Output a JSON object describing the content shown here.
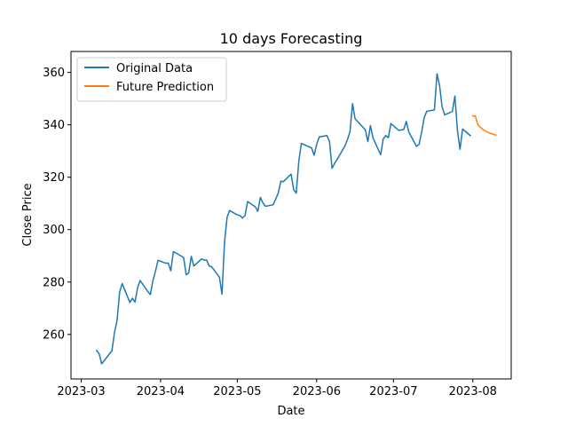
{
  "chart_data": {
    "type": "line",
    "title": "10 days Forecasting",
    "xlabel": "Date",
    "ylabel": "Close Price",
    "x_axis": {
      "type": "date",
      "range": [
        "2023-02-25",
        "2023-08-16"
      ],
      "ticks": [
        "2023-03-01",
        "2023-04-01",
        "2023-05-01",
        "2023-06-01",
        "2023-07-01",
        "2023-08-01"
      ],
      "tick_labels": [
        "2023-03",
        "2023-04",
        "2023-05",
        "2023-06",
        "2023-07",
        "2023-08"
      ]
    },
    "y_axis": {
      "range": [
        243,
        368
      ],
      "ticks": [
        260,
        280,
        300,
        320,
        340,
        360
      ],
      "tick_labels": [
        "260",
        "280",
        "300",
        "320",
        "340",
        "360"
      ]
    },
    "grid": false,
    "legend": {
      "placement": "top-left"
    },
    "series": [
      {
        "name": "Original Data",
        "color": "#1f77b4",
        "points": [
          [
            "2023-03-07",
            253.9
          ],
          [
            "2023-03-08",
            252.6
          ],
          [
            "2023-03-09",
            248.8
          ],
          [
            "2023-03-13",
            253.8
          ],
          [
            "2023-03-14",
            260.8
          ],
          [
            "2023-03-15",
            265.4
          ],
          [
            "2023-03-16",
            276.2
          ],
          [
            "2023-03-17",
            279.4
          ],
          [
            "2023-03-20",
            272.2
          ],
          [
            "2023-03-21",
            273.8
          ],
          [
            "2023-03-22",
            272.3
          ],
          [
            "2023-03-23",
            277.7
          ],
          [
            "2023-03-24",
            280.6
          ],
          [
            "2023-03-27",
            276.4
          ],
          [
            "2023-03-28",
            275.2
          ],
          [
            "2023-03-29",
            280.5
          ],
          [
            "2023-03-30",
            284.1
          ],
          [
            "2023-03-31",
            288.3
          ],
          [
            "2023-04-03",
            287.2
          ],
          [
            "2023-04-04",
            287.2
          ],
          [
            "2023-04-05",
            284.3
          ],
          [
            "2023-04-06",
            291.6
          ],
          [
            "2023-04-10",
            289.4
          ],
          [
            "2023-04-11",
            282.8
          ],
          [
            "2023-04-12",
            283.5
          ],
          [
            "2023-04-13",
            289.8
          ],
          [
            "2023-04-14",
            286.1
          ],
          [
            "2023-04-17",
            288.8
          ],
          [
            "2023-04-18",
            288.4
          ],
          [
            "2023-04-19",
            288.4
          ],
          [
            "2023-04-20",
            286.1
          ],
          [
            "2023-04-21",
            285.8
          ],
          [
            "2023-04-24",
            281.8
          ],
          [
            "2023-04-25",
            275.4
          ],
          [
            "2023-04-26",
            295.4
          ],
          [
            "2023-04-27",
            304.8
          ],
          [
            "2023-04-28",
            307.3
          ],
          [
            "2023-05-01",
            305.6
          ],
          [
            "2023-05-02",
            305.4
          ],
          [
            "2023-05-03",
            304.4
          ],
          [
            "2023-05-04",
            305.4
          ],
          [
            "2023-05-05",
            310.7
          ],
          [
            "2023-05-08",
            308.7
          ],
          [
            "2023-05-09",
            307.0
          ],
          [
            "2023-05-10",
            312.3
          ],
          [
            "2023-05-11",
            310.2
          ],
          [
            "2023-05-12",
            308.9
          ],
          [
            "2023-05-15",
            309.5
          ],
          [
            "2023-05-16",
            311.7
          ],
          [
            "2023-05-17",
            314.0
          ],
          [
            "2023-05-18",
            318.5
          ],
          [
            "2023-05-19",
            318.3
          ],
          [
            "2023-05-22",
            321.2
          ],
          [
            "2023-05-23",
            315.3
          ],
          [
            "2023-05-24",
            313.9
          ],
          [
            "2023-05-25",
            325.9
          ],
          [
            "2023-05-26",
            332.9
          ],
          [
            "2023-05-30",
            331.2
          ],
          [
            "2023-05-31",
            328.4
          ],
          [
            "2023-06-01",
            332.6
          ],
          [
            "2023-06-02",
            335.4
          ],
          [
            "2023-06-05",
            335.9
          ],
          [
            "2023-06-06",
            333.7
          ],
          [
            "2023-06-07",
            323.4
          ],
          [
            "2023-06-08",
            325.3
          ],
          [
            "2023-06-09",
            326.8
          ],
          [
            "2023-06-12",
            331.9
          ],
          [
            "2023-06-13",
            334.3
          ],
          [
            "2023-06-14",
            337.3
          ],
          [
            "2023-06-15",
            348.1
          ],
          [
            "2023-06-16",
            342.3
          ],
          [
            "2023-06-20",
            338.1
          ],
          [
            "2023-06-21",
            333.6
          ],
          [
            "2023-06-22",
            339.7
          ],
          [
            "2023-06-23",
            335.0
          ],
          [
            "2023-06-26",
            328.6
          ],
          [
            "2023-06-27",
            334.6
          ],
          [
            "2023-06-28",
            335.9
          ],
          [
            "2023-06-29",
            335.1
          ],
          [
            "2023-06-30",
            340.5
          ],
          [
            "2023-07-03",
            337.9
          ],
          [
            "2023-07-05",
            338.2
          ],
          [
            "2023-07-06",
            341.3
          ],
          [
            "2023-07-07",
            337.2
          ],
          [
            "2023-07-10",
            331.8
          ],
          [
            "2023-07-11",
            332.5
          ],
          [
            "2023-07-12",
            337.2
          ],
          [
            "2023-07-13",
            342.7
          ],
          [
            "2023-07-14",
            345.2
          ],
          [
            "2023-07-17",
            345.7
          ],
          [
            "2023-07-18",
            359.5
          ],
          [
            "2023-07-19",
            355.1
          ],
          [
            "2023-07-20",
            346.9
          ],
          [
            "2023-07-21",
            343.8
          ],
          [
            "2023-07-24",
            345.1
          ],
          [
            "2023-07-25",
            350.98
          ],
          [
            "2023-07-26",
            337.8
          ],
          [
            "2023-07-27",
            330.7
          ],
          [
            "2023-07-28",
            338.4
          ],
          [
            "2023-07-31",
            335.9
          ]
        ]
      },
      {
        "name": "Future Prediction",
        "color": "#ff7f0e",
        "points": [
          [
            "2023-08-01",
            343.4
          ],
          [
            "2023-08-02",
            343.3
          ],
          [
            "2023-08-03",
            340.0
          ],
          [
            "2023-08-04",
            339.0
          ],
          [
            "2023-08-05",
            338.2
          ],
          [
            "2023-08-06",
            337.6
          ],
          [
            "2023-08-07",
            337.1
          ],
          [
            "2023-08-08",
            336.7
          ],
          [
            "2023-08-09",
            336.4
          ],
          [
            "2023-08-10",
            336.1
          ]
        ]
      }
    ]
  }
}
